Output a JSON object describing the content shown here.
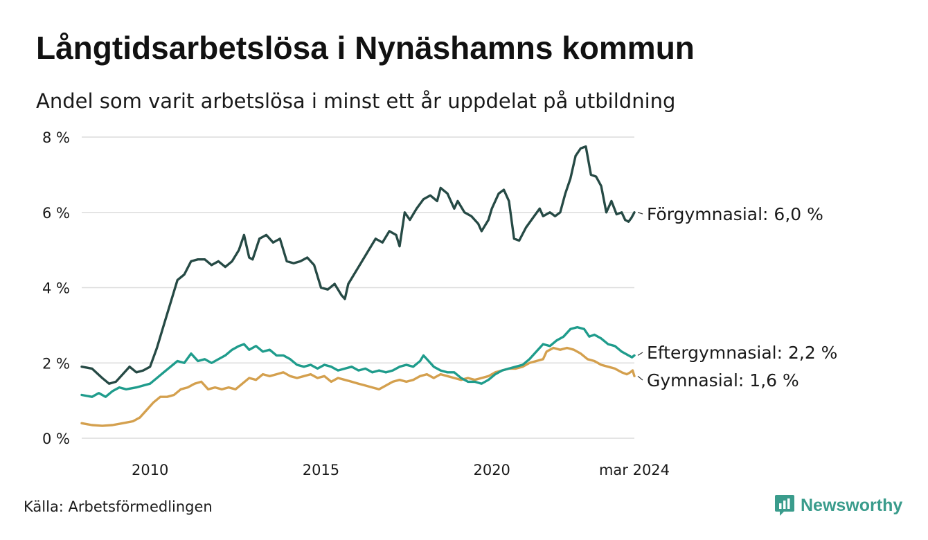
{
  "title": "Långtidsarbetslösa i Nynäshamns kommun",
  "subtitle": "Andel som varit arbetslösa i minst ett år uppdelat på utbildning",
  "source": "Källa: Arbetsförmedlingen",
  "brand": {
    "name": "Newsworthy",
    "icon": "newsworthy-logo-icon",
    "color": "#3a9c8c"
  },
  "chart_data": {
    "type": "line",
    "y_ticks": [
      {
        "value": 0,
        "label": "0 %"
      },
      {
        "value": 2,
        "label": "2 %"
      },
      {
        "value": 4,
        "label": "4 %"
      },
      {
        "value": 6,
        "label": "6 %"
      },
      {
        "value": 8,
        "label": "8 %"
      }
    ],
    "x_ticks": [
      {
        "value": 2010,
        "label": "2010"
      },
      {
        "value": 2015,
        "label": "2015"
      },
      {
        "value": 2020,
        "label": "2020"
      },
      {
        "value": 2024.17,
        "label": "mar 2024"
      }
    ],
    "xlim": [
      2008.0,
      2024.17
    ],
    "ylim": [
      0,
      8
    ],
    "grid": true,
    "series": [
      {
        "name": "Förgymnasial",
        "end_label": "Förgymnasial: 6,0 %",
        "color": "#264a45",
        "points": [
          [
            2008.0,
            1.9
          ],
          [
            2008.3,
            1.85
          ],
          [
            2008.6,
            1.6
          ],
          [
            2008.8,
            1.45
          ],
          [
            2009.0,
            1.5
          ],
          [
            2009.2,
            1.7
          ],
          [
            2009.4,
            1.9
          ],
          [
            2009.6,
            1.75
          ],
          [
            2009.8,
            1.8
          ],
          [
            2010.0,
            1.9
          ],
          [
            2010.2,
            2.4
          ],
          [
            2010.4,
            3.0
          ],
          [
            2010.6,
            3.6
          ],
          [
            2010.8,
            4.2
          ],
          [
            2011.0,
            4.35
          ],
          [
            2011.2,
            4.7
          ],
          [
            2011.4,
            4.75
          ],
          [
            2011.6,
            4.75
          ],
          [
            2011.8,
            4.6
          ],
          [
            2012.0,
            4.7
          ],
          [
            2012.2,
            4.55
          ],
          [
            2012.4,
            4.7
          ],
          [
            2012.6,
            5.0
          ],
          [
            2012.75,
            5.4
          ],
          [
            2012.9,
            4.8
          ],
          [
            2013.0,
            4.75
          ],
          [
            2013.2,
            5.3
          ],
          [
            2013.4,
            5.4
          ],
          [
            2013.6,
            5.2
          ],
          [
            2013.8,
            5.3
          ],
          [
            2014.0,
            4.7
          ],
          [
            2014.2,
            4.65
          ],
          [
            2014.4,
            4.7
          ],
          [
            2014.6,
            4.8
          ],
          [
            2014.8,
            4.6
          ],
          [
            2015.0,
            4.0
          ],
          [
            2015.2,
            3.95
          ],
          [
            2015.4,
            4.1
          ],
          [
            2015.6,
            3.8
          ],
          [
            2015.7,
            3.7
          ],
          [
            2015.8,
            4.1
          ],
          [
            2016.0,
            4.4
          ],
          [
            2016.2,
            4.7
          ],
          [
            2016.4,
            5.0
          ],
          [
            2016.6,
            5.3
          ],
          [
            2016.8,
            5.2
          ],
          [
            2017.0,
            5.5
          ],
          [
            2017.2,
            5.4
          ],
          [
            2017.3,
            5.1
          ],
          [
            2017.45,
            6.0
          ],
          [
            2017.6,
            5.8
          ],
          [
            2017.8,
            6.1
          ],
          [
            2018.0,
            6.35
          ],
          [
            2018.2,
            6.45
          ],
          [
            2018.4,
            6.3
          ],
          [
            2018.5,
            6.65
          ],
          [
            2018.7,
            6.5
          ],
          [
            2018.9,
            6.1
          ],
          [
            2019.0,
            6.3
          ],
          [
            2019.2,
            6.0
          ],
          [
            2019.4,
            5.9
          ],
          [
            2019.6,
            5.7
          ],
          [
            2019.7,
            5.5
          ],
          [
            2019.9,
            5.8
          ],
          [
            2020.0,
            6.1
          ],
          [
            2020.2,
            6.5
          ],
          [
            2020.35,
            6.6
          ],
          [
            2020.5,
            6.3
          ],
          [
            2020.65,
            5.3
          ],
          [
            2020.8,
            5.25
          ],
          [
            2021.0,
            5.6
          ],
          [
            2021.2,
            5.85
          ],
          [
            2021.4,
            6.1
          ],
          [
            2021.5,
            5.9
          ],
          [
            2021.7,
            6.0
          ],
          [
            2021.85,
            5.9
          ],
          [
            2022.0,
            6.0
          ],
          [
            2022.15,
            6.5
          ],
          [
            2022.3,
            6.9
          ],
          [
            2022.45,
            7.5
          ],
          [
            2022.6,
            7.7
          ],
          [
            2022.75,
            7.75
          ],
          [
            2022.9,
            7.0
          ],
          [
            2023.05,
            6.95
          ],
          [
            2023.2,
            6.7
          ],
          [
            2023.35,
            6.0
          ],
          [
            2023.5,
            6.3
          ],
          [
            2023.65,
            5.95
          ],
          [
            2023.8,
            6.0
          ],
          [
            2023.9,
            5.8
          ],
          [
            2024.0,
            5.75
          ],
          [
            2024.08,
            5.85
          ],
          [
            2024.17,
            6.0
          ]
        ]
      },
      {
        "name": "Eftergymnasial",
        "end_label": "Eftergymnasial: 2,2 %",
        "color": "#1f9c8c",
        "points": [
          [
            2008.0,
            1.15
          ],
          [
            2008.3,
            1.1
          ],
          [
            2008.5,
            1.2
          ],
          [
            2008.7,
            1.1
          ],
          [
            2008.9,
            1.25
          ],
          [
            2009.1,
            1.35
          ],
          [
            2009.3,
            1.3
          ],
          [
            2009.6,
            1.35
          ],
          [
            2009.8,
            1.4
          ],
          [
            2010.0,
            1.45
          ],
          [
            2010.2,
            1.6
          ],
          [
            2010.4,
            1.75
          ],
          [
            2010.6,
            1.9
          ],
          [
            2010.8,
            2.05
          ],
          [
            2011.0,
            2.0
          ],
          [
            2011.2,
            2.25
          ],
          [
            2011.4,
            2.05
          ],
          [
            2011.6,
            2.1
          ],
          [
            2011.8,
            2.0
          ],
          [
            2012.0,
            2.1
          ],
          [
            2012.2,
            2.2
          ],
          [
            2012.4,
            2.35
          ],
          [
            2012.6,
            2.45
          ],
          [
            2012.75,
            2.5
          ],
          [
            2012.9,
            2.35
          ],
          [
            2013.1,
            2.45
          ],
          [
            2013.3,
            2.3
          ],
          [
            2013.5,
            2.35
          ],
          [
            2013.7,
            2.2
          ],
          [
            2013.9,
            2.2
          ],
          [
            2014.1,
            2.1
          ],
          [
            2014.3,
            1.95
          ],
          [
            2014.5,
            1.9
          ],
          [
            2014.7,
            1.95
          ],
          [
            2014.9,
            1.85
          ],
          [
            2015.1,
            1.95
          ],
          [
            2015.3,
            1.9
          ],
          [
            2015.5,
            1.8
          ],
          [
            2015.7,
            1.85
          ],
          [
            2015.9,
            1.9
          ],
          [
            2016.1,
            1.8
          ],
          [
            2016.3,
            1.85
          ],
          [
            2016.5,
            1.75
          ],
          [
            2016.7,
            1.8
          ],
          [
            2016.9,
            1.75
          ],
          [
            2017.1,
            1.8
          ],
          [
            2017.3,
            1.9
          ],
          [
            2017.5,
            1.95
          ],
          [
            2017.7,
            1.9
          ],
          [
            2017.9,
            2.05
          ],
          [
            2018.0,
            2.2
          ],
          [
            2018.15,
            2.05
          ],
          [
            2018.3,
            1.9
          ],
          [
            2018.5,
            1.8
          ],
          [
            2018.7,
            1.75
          ],
          [
            2018.9,
            1.75
          ],
          [
            2019.1,
            1.6
          ],
          [
            2019.3,
            1.5
          ],
          [
            2019.5,
            1.5
          ],
          [
            2019.7,
            1.45
          ],
          [
            2019.9,
            1.55
          ],
          [
            2020.1,
            1.7
          ],
          [
            2020.3,
            1.8
          ],
          [
            2020.5,
            1.85
          ],
          [
            2020.7,
            1.9
          ],
          [
            2020.9,
            1.95
          ],
          [
            2021.1,
            2.1
          ],
          [
            2021.3,
            2.3
          ],
          [
            2021.5,
            2.5
          ],
          [
            2021.7,
            2.45
          ],
          [
            2021.9,
            2.6
          ],
          [
            2022.1,
            2.7
          ],
          [
            2022.3,
            2.9
          ],
          [
            2022.5,
            2.95
          ],
          [
            2022.7,
            2.9
          ],
          [
            2022.85,
            2.7
          ],
          [
            2023.0,
            2.75
          ],
          [
            2023.2,
            2.65
          ],
          [
            2023.4,
            2.5
          ],
          [
            2023.6,
            2.45
          ],
          [
            2023.8,
            2.3
          ],
          [
            2024.0,
            2.2
          ],
          [
            2024.1,
            2.15
          ],
          [
            2024.17,
            2.2
          ]
        ]
      },
      {
        "name": "Gymnasial",
        "end_label": "Gymnasial: 1,6 %",
        "color": "#d4a04e",
        "points": [
          [
            2008.0,
            0.4
          ],
          [
            2008.3,
            0.35
          ],
          [
            2008.6,
            0.33
          ],
          [
            2008.9,
            0.35
          ],
          [
            2009.2,
            0.4
          ],
          [
            2009.5,
            0.45
          ],
          [
            2009.7,
            0.55
          ],
          [
            2009.9,
            0.75
          ],
          [
            2010.1,
            0.95
          ],
          [
            2010.3,
            1.1
          ],
          [
            2010.5,
            1.1
          ],
          [
            2010.7,
            1.15
          ],
          [
            2010.9,
            1.3
          ],
          [
            2011.1,
            1.35
          ],
          [
            2011.3,
            1.45
          ],
          [
            2011.5,
            1.5
          ],
          [
            2011.7,
            1.3
          ],
          [
            2011.9,
            1.35
          ],
          [
            2012.1,
            1.3
          ],
          [
            2012.3,
            1.35
          ],
          [
            2012.5,
            1.3
          ],
          [
            2012.7,
            1.45
          ],
          [
            2012.9,
            1.6
          ],
          [
            2013.1,
            1.55
          ],
          [
            2013.3,
            1.7
          ],
          [
            2013.5,
            1.65
          ],
          [
            2013.7,
            1.7
          ],
          [
            2013.9,
            1.75
          ],
          [
            2014.1,
            1.65
          ],
          [
            2014.3,
            1.6
          ],
          [
            2014.5,
            1.65
          ],
          [
            2014.7,
            1.7
          ],
          [
            2014.9,
            1.6
          ],
          [
            2015.1,
            1.65
          ],
          [
            2015.3,
            1.5
          ],
          [
            2015.5,
            1.6
          ],
          [
            2015.7,
            1.55
          ],
          [
            2015.9,
            1.5
          ],
          [
            2016.1,
            1.45
          ],
          [
            2016.3,
            1.4
          ],
          [
            2016.5,
            1.35
          ],
          [
            2016.7,
            1.3
          ],
          [
            2016.9,
            1.4
          ],
          [
            2017.1,
            1.5
          ],
          [
            2017.3,
            1.55
          ],
          [
            2017.5,
            1.5
          ],
          [
            2017.7,
            1.55
          ],
          [
            2017.9,
            1.65
          ],
          [
            2018.1,
            1.7
          ],
          [
            2018.3,
            1.6
          ],
          [
            2018.5,
            1.7
          ],
          [
            2018.7,
            1.65
          ],
          [
            2018.9,
            1.6
          ],
          [
            2019.1,
            1.55
          ],
          [
            2019.3,
            1.6
          ],
          [
            2019.5,
            1.55
          ],
          [
            2019.7,
            1.6
          ],
          [
            2019.9,
            1.65
          ],
          [
            2020.1,
            1.75
          ],
          [
            2020.3,
            1.8
          ],
          [
            2020.5,
            1.85
          ],
          [
            2020.7,
            1.85
          ],
          [
            2020.9,
            1.9
          ],
          [
            2021.1,
            2.0
          ],
          [
            2021.3,
            2.05
          ],
          [
            2021.5,
            2.1
          ],
          [
            2021.6,
            2.3
          ],
          [
            2021.8,
            2.4
          ],
          [
            2022.0,
            2.35
          ],
          [
            2022.2,
            2.4
          ],
          [
            2022.4,
            2.35
          ],
          [
            2022.6,
            2.25
          ],
          [
            2022.8,
            2.1
          ],
          [
            2023.0,
            2.05
          ],
          [
            2023.2,
            1.95
          ],
          [
            2023.4,
            1.9
          ],
          [
            2023.6,
            1.85
          ],
          [
            2023.8,
            1.75
          ],
          [
            2023.95,
            1.7
          ],
          [
            2024.05,
            1.75
          ],
          [
            2024.12,
            1.8
          ],
          [
            2024.17,
            1.65
          ]
        ]
      }
    ]
  }
}
